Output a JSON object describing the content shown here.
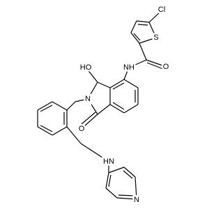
{
  "nodes": [
    {
      "label": "Cl"
    },
    {
      "label": "S"
    },
    {
      "label": "O"
    },
    {
      "label": "NH"
    },
    {
      "label": "HO"
    },
    {
      "label": "N"
    },
    {
      "label": "O"
    },
    {
      "label": "HN"
    },
    {
      "label": "N"
    }
  ]
}
